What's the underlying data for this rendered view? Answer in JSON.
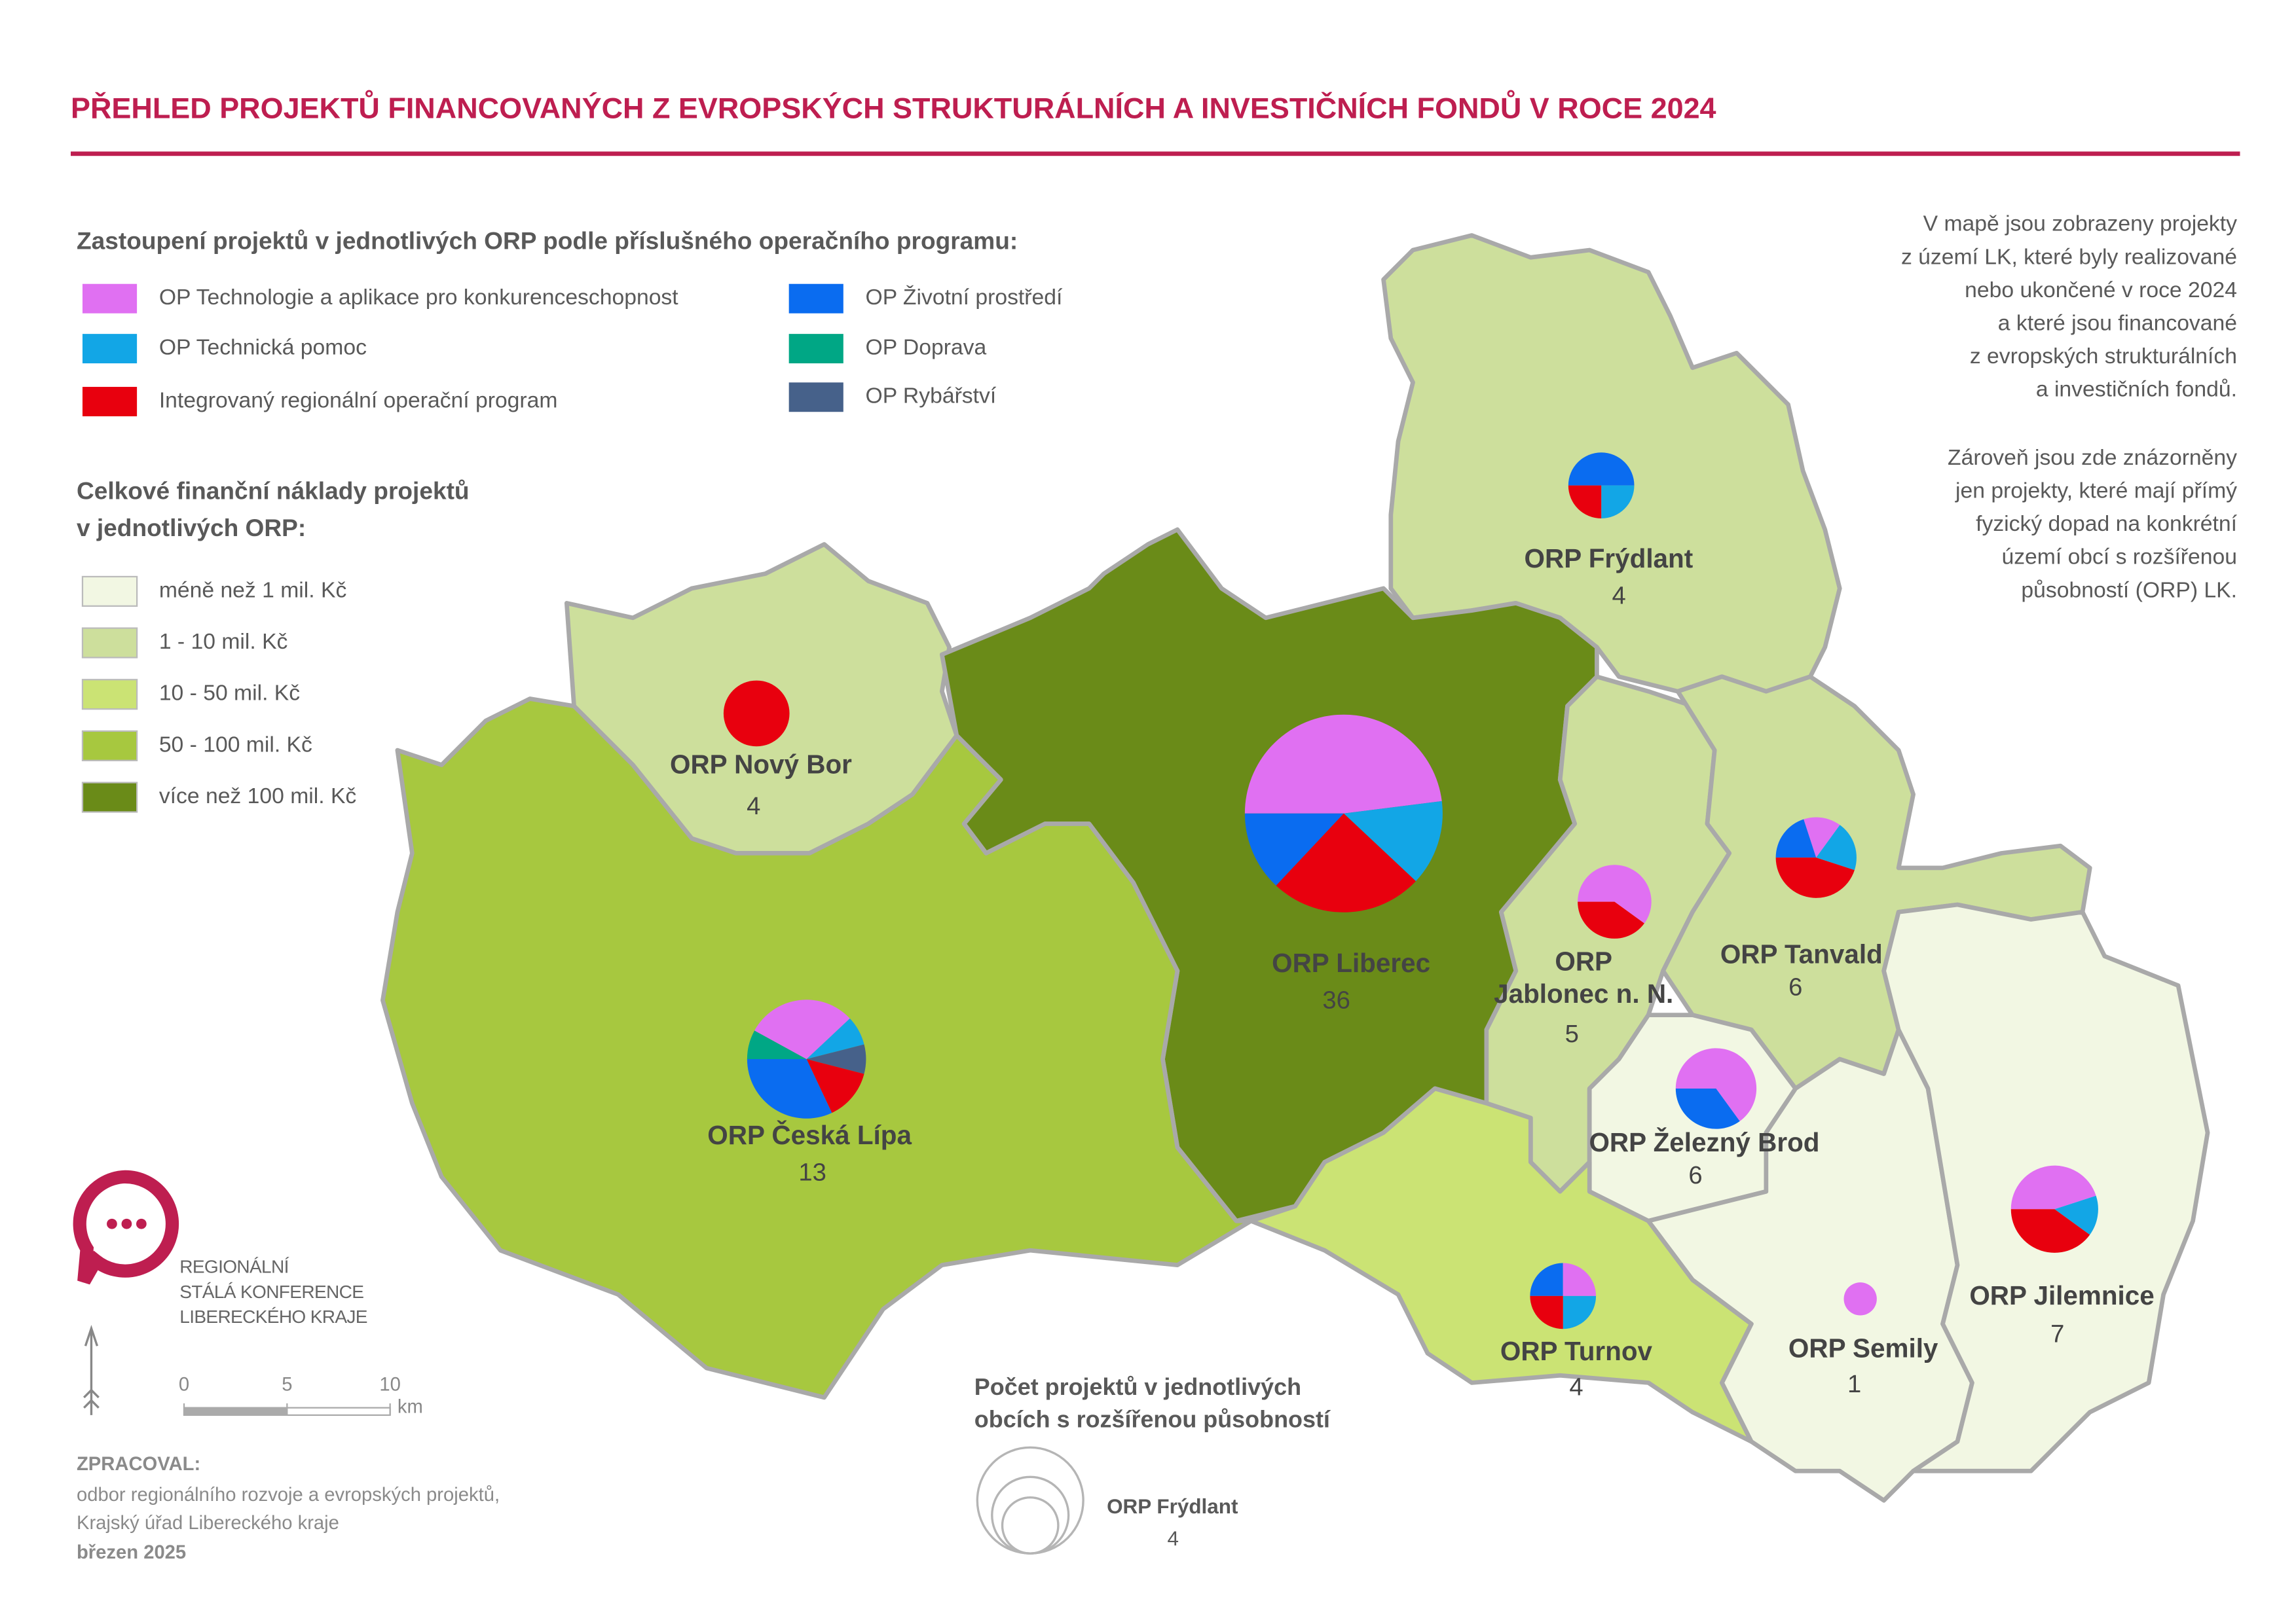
{
  "header": {
    "title": "PŘEHLED PROJEKTŮ FINANCOVANÝCH Z EVROPSKÝCH STRUKTURÁLNÍCH A INVESTIČNÍCH FONDŮ V ROCE 2024"
  },
  "legend_programs": {
    "title": "Zastoupení projektů v jednotlivých ORP podle příslušného operačního programu:",
    "items": [
      {
        "label": "OP Technologie a aplikace pro konkurenceschopnost",
        "color": "#e070f2"
      },
      {
        "label": "OP Technická pomoc",
        "color": "#12a6e6"
      },
      {
        "label": "Integrovaný regionální operační program",
        "color": "#e8000e"
      },
      {
        "label": "OP Životní prostředí",
        "color": "#0a6cf0"
      },
      {
        "label": "OP Doprava",
        "color": "#00a785"
      },
      {
        "label": "OP Rybářství",
        "color": "#46618a"
      }
    ]
  },
  "legend_costs": {
    "title": [
      "Celkové finanční náklady projektů",
      "v jednotlivých ORP:"
    ],
    "items": [
      {
        "label": "méně než 1 mil. Kč",
        "color": "#f2f7e3"
      },
      {
        "label": "1 - 10 mil. Kč",
        "color": "#cddf9c"
      },
      {
        "label": "10 - 50 mil. Kč",
        "color": "#cbe374"
      },
      {
        "label": "50 - 100 mil. Kč",
        "color": "#a7c83f"
      },
      {
        "label": "více než 100 mil. Kč",
        "color": "#6a8b18"
      }
    ]
  },
  "note": {
    "paragraphs": [
      [
        "V mapě jsou zobrazeny projekty",
        "z území LK, které byly realizované",
        "nebo ukončené v roce 2024",
        "a které jsou financované",
        "z evropských strukturálních",
        "a investičních fondů."
      ],
      [
        "Zároveň jsou zde znázorněny",
        "jen projekty, které mají přímý",
        "fyzický dopad na konkrétní",
        "území obcí s rozšířenou",
        "působností (ORP) LK."
      ]
    ]
  },
  "regions": [
    {
      "name": [
        "ORP Frýdlant"
      ],
      "count": 4,
      "fill": "#cddf9c",
      "pie": [
        {
          "color": "#0a6cf0",
          "share": 50
        },
        {
          "color": "#12a6e6",
          "share": 25
        },
        {
          "color": "#e8000e",
          "share": 25
        }
      ]
    },
    {
      "name": [
        "ORP Nový Bor"
      ],
      "count": 4,
      "fill": "#cddf9c",
      "pie": [
        {
          "color": "#e8000e",
          "share": 100
        }
      ]
    },
    {
      "name": [
        "ORP Liberec"
      ],
      "count": 36,
      "fill": "#6a8b18",
      "pie": [
        {
          "color": "#e070f2",
          "share": 48
        },
        {
          "color": "#12a6e6",
          "share": 14
        },
        {
          "color": "#e8000e",
          "share": 25
        },
        {
          "color": "#0a6cf0",
          "share": 13
        }
      ]
    },
    {
      "name": [
        "ORP Česká Lípa"
      ],
      "count": 13,
      "fill": "#a7c83f",
      "pie": [
        {
          "color": "#00a785",
          "share": 8
        },
        {
          "color": "#e070f2",
          "share": 30
        },
        {
          "color": "#12a6e6",
          "share": 8
        },
        {
          "color": "#46618a",
          "share": 8
        },
        {
          "color": "#e8000e",
          "share": 14
        },
        {
          "color": "#0a6cf0",
          "share": 32
        }
      ]
    },
    {
      "name": [
        "ORP",
        "Jablonec n. N."
      ],
      "count": 5,
      "fill": "#cddf9c",
      "pie": [
        {
          "color": "#e070f2",
          "share": 60
        },
        {
          "color": "#e8000e",
          "share": 40
        }
      ]
    },
    {
      "name": [
        "ORP Tanvald"
      ],
      "count": 6,
      "fill": "#cddf9c",
      "pie": [
        {
          "color": "#0a6cf0",
          "share": 20
        },
        {
          "color": "#e070f2",
          "share": 15
        },
        {
          "color": "#12a6e6",
          "share": 20
        },
        {
          "color": "#e8000e",
          "share": 45
        }
      ]
    },
    {
      "name": [
        "ORP Železný Brod"
      ],
      "count": 6,
      "fill": "#f2f7e3",
      "pie": [
        {
          "color": "#e070f2",
          "share": 65
        },
        {
          "color": "#0a6cf0",
          "share": 35
        }
      ]
    },
    {
      "name": [
        "ORP Turnov"
      ],
      "count": 4,
      "fill": "#cbe374",
      "pie": [
        {
          "color": "#0a6cf0",
          "share": 25
        },
        {
          "color": "#e070f2",
          "share": 25
        },
        {
          "color": "#12a6e6",
          "share": 25
        },
        {
          "color": "#e8000e",
          "share": 25
        }
      ]
    },
    {
      "name": [
        "ORP Semily"
      ],
      "count": 1,
      "fill": "#f2f7e3",
      "pie": [
        {
          "color": "#e070f2",
          "share": 100
        }
      ]
    },
    {
      "name": [
        "ORP Jilemnice"
      ],
      "count": 7,
      "fill": "#f2f7e3",
      "pie": [
        {
          "color": "#e070f2",
          "share": 45
        },
        {
          "color": "#12a6e6",
          "share": 15
        },
        {
          "color": "#e8000e",
          "share": 40
        }
      ]
    }
  ],
  "size_legend": {
    "title": [
      "Počet projektů v jednotlivých",
      "obcích s rozšířenou působností"
    ],
    "example_name": "ORP Frýdlant",
    "example_count": 4
  },
  "scale": {
    "ticks": [
      0,
      5,
      10
    ],
    "unit": "km"
  },
  "logo": {
    "lines": [
      "REGIONÁLNÍ",
      "STÁLÁ KONFERENCE",
      "LIBERECKÉHO KRAJE"
    ]
  },
  "credits": {
    "label": "ZPRACOVAL:",
    "lines": [
      "odbor regionálního rozvoje a evropských projektů,",
      "Krajský úřad Libereckého kraje"
    ],
    "date": "březen 2025"
  }
}
